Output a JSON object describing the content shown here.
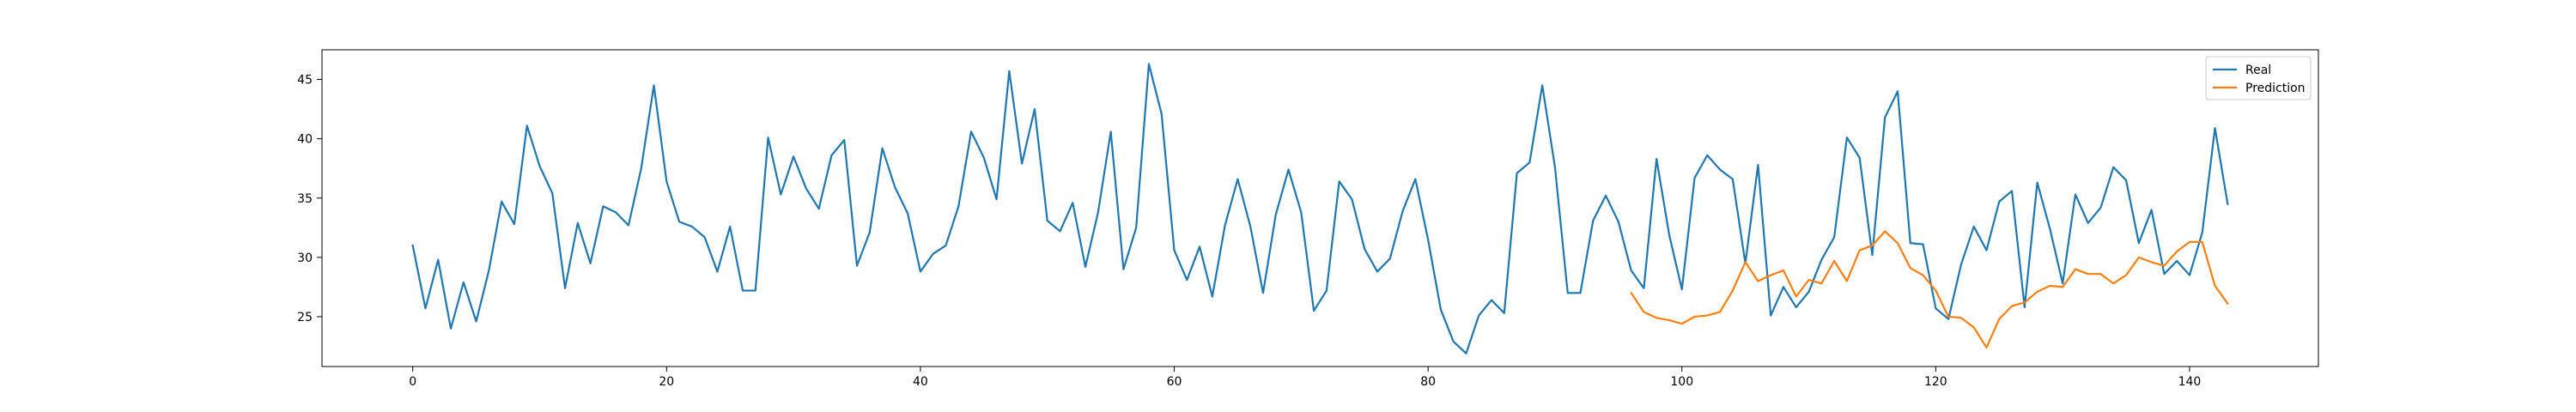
{
  "chart_data": {
    "type": "line",
    "title": "",
    "xlabel": "",
    "ylabel": "",
    "xlim": [
      -7.15,
      150.15
    ],
    "ylim": [
      20.8,
      47.5
    ],
    "xticks": [
      0,
      20,
      40,
      60,
      80,
      100,
      120,
      140
    ],
    "yticks": [
      25,
      30,
      35,
      40,
      45
    ],
    "grid": false,
    "legend": {
      "position": "top-right"
    },
    "series": [
      {
        "name": "Real",
        "color": "#1f77b4",
        "x_start": 0,
        "values": [
          31.0,
          25.7,
          29.8,
          24.0,
          27.9,
          24.6,
          28.9,
          34.7,
          32.8,
          41.1,
          37.7,
          35.4,
          27.4,
          32.9,
          29.5,
          34.3,
          33.8,
          32.7,
          37.5,
          44.5,
          36.4,
          33.0,
          32.6,
          31.7,
          28.8,
          32.6,
          27.2,
          27.2,
          40.1,
          35.3,
          38.5,
          35.8,
          34.1,
          38.6,
          39.9,
          29.3,
          32.1,
          39.2,
          35.9,
          33.7,
          28.8,
          30.3,
          31.0,
          34.3,
          40.6,
          38.4,
          34.9,
          45.7,
          37.9,
          42.5,
          33.1,
          32.2,
          34.6,
          29.2,
          33.8,
          40.6,
          29.0,
          32.5,
          46.3,
          42.1,
          30.6,
          28.1,
          30.9,
          26.7,
          32.7,
          36.6,
          32.6,
          27.0,
          33.6,
          37.4,
          33.8,
          25.5,
          27.2,
          36.4,
          34.9,
          30.7,
          28.8,
          29.9,
          33.9,
          36.6,
          31.5,
          25.6,
          22.9,
          21.9,
          25.1,
          26.4,
          25.3,
          37.1,
          38.0,
          44.5,
          37.6,
          27.0,
          27.0,
          33.1,
          35.2,
          33.0,
          28.9,
          27.4,
          38.3,
          31.9,
          27.3,
          36.7,
          38.6,
          37.4,
          36.6,
          29.5,
          37.8,
          25.1,
          27.5,
          25.8,
          27.1,
          29.8,
          31.7,
          40.1,
          38.4,
          30.2,
          41.8,
          44.0,
          31.2,
          31.1,
          25.7,
          24.8,
          29.4,
          32.6,
          30.6,
          34.7,
          35.6,
          25.8,
          36.3,
          32.4,
          27.8,
          35.3,
          32.9,
          34.2,
          37.6,
          36.5,
          31.2,
          34.0,
          28.6,
          29.7,
          28.5,
          32.1,
          40.9,
          34.5
        ]
      },
      {
        "name": "Prediction",
        "color": "#ff7f0e",
        "x_start": 96,
        "values": [
          27.0,
          25.4,
          24.9,
          24.7,
          24.4,
          25.0,
          25.1,
          25.4,
          27.2,
          29.6,
          28.0,
          28.5,
          28.9,
          26.7,
          28.1,
          27.8,
          29.7,
          28.0,
          30.6,
          31.0,
          32.2,
          31.2,
          29.1,
          28.5,
          27.2,
          25.0,
          24.9,
          24.1,
          22.4,
          24.8,
          25.9,
          26.2,
          27.1,
          27.6,
          27.5,
          29.0,
          28.6,
          28.6,
          27.8,
          28.5,
          30.0,
          29.6,
          29.3,
          30.5,
          31.3,
          31.3,
          27.6,
          26.1
        ]
      }
    ]
  }
}
